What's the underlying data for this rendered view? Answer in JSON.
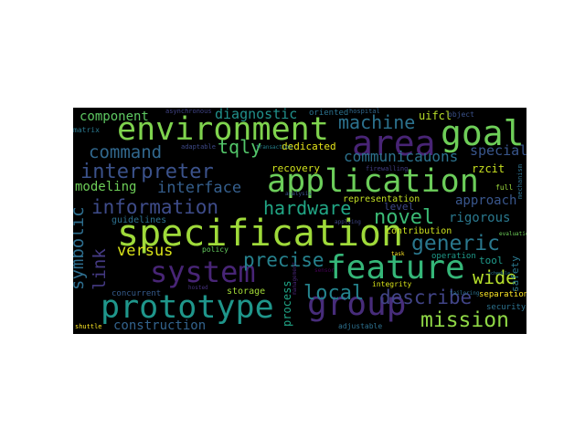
{
  "wordcloud": {
    "background": "#000000",
    "words": [
      {
        "text": "environment",
        "color": "#7fd34e"
      },
      {
        "text": "area",
        "color": "#482475"
      },
      {
        "text": "goal",
        "color": "#6ece58"
      },
      {
        "text": "application",
        "color": "#6ccd5a"
      },
      {
        "text": "specification",
        "color": "#9fda3a"
      },
      {
        "text": "system",
        "color": "#482576"
      },
      {
        "text": "feature",
        "color": "#35b779"
      },
      {
        "text": "prototype",
        "color": "#1f968b"
      },
      {
        "text": "group",
        "color": "#472c7a"
      },
      {
        "text": "interpreter",
        "color": "#3b528b"
      },
      {
        "text": "information",
        "color": "#3e4c8a"
      },
      {
        "text": "machine",
        "color": "#2c728e"
      },
      {
        "text": "command",
        "color": "#31688e"
      },
      {
        "text": "hardware",
        "color": "#21a685"
      },
      {
        "text": "novel",
        "color": "#3bbb75"
      },
      {
        "text": "generic",
        "color": "#2a788e"
      },
      {
        "text": "mission",
        "color": "#8ed645"
      },
      {
        "text": "local",
        "color": "#25848e"
      },
      {
        "text": "describe",
        "color": "#414487"
      },
      {
        "text": "precise",
        "color": "#26828e"
      },
      {
        "text": "symbolic",
        "color": "#2e6e8e"
      },
      {
        "text": "link",
        "color": "#443a83"
      },
      {
        "text": "interface",
        "color": "#355f8d"
      },
      {
        "text": "communicauons",
        "color": "#2c728e"
      },
      {
        "text": "tqly",
        "color": "#52c569"
      },
      {
        "text": "versus",
        "color": "#d8e219"
      },
      {
        "text": "diagnostic",
        "color": "#21918c"
      },
      {
        "text": "component",
        "color": "#5ec962"
      },
      {
        "text": "construction",
        "color": "#33638d"
      },
      {
        "text": "modeling",
        "color": "#6ece58"
      },
      {
        "text": "approach",
        "color": "#39568c"
      },
      {
        "text": "rigorous",
        "color": "#2a788e"
      },
      {
        "text": "special",
        "color": "#39568c"
      },
      {
        "text": "wide",
        "color": "#b5de2b"
      },
      {
        "text": "uifcl",
        "color": "#b8de29"
      },
      {
        "text": "rzcit",
        "color": "#c8e020"
      },
      {
        "text": "recovery",
        "color": "#d0e11c"
      },
      {
        "text": "dedicated",
        "color": "#e5e419"
      },
      {
        "text": "representation",
        "color": "#c2df23"
      },
      {
        "text": "guidelines",
        "color": "#2d708e"
      },
      {
        "text": "contribution",
        "color": "#cde11d"
      },
      {
        "text": "storage",
        "color": "#a2da37"
      },
      {
        "text": "process",
        "color": "#20a486"
      },
      {
        "text": "level",
        "color": "#3e4989"
      },
      {
        "text": "tool",
        "color": "#1f9a8a"
      },
      {
        "text": "safety",
        "color": "#2a788e"
      },
      {
        "text": "operation",
        "color": "#1e9b8a"
      },
      {
        "text": "integrity",
        "color": "#d8e219"
      },
      {
        "text": "separation",
        "color": "#fde725"
      },
      {
        "text": "security",
        "color": "#2c728e"
      },
      {
        "text": "concurrent",
        "color": "#365c8d"
      },
      {
        "text": "policy",
        "color": "#65cb5e"
      },
      {
        "text": "adjustable",
        "color": "#2d708e"
      },
      {
        "text": "shuttle",
        "color": "#fde725"
      },
      {
        "text": "full",
        "color": "#9bd93c"
      },
      {
        "text": "oriented",
        "color": "#2c728e"
      },
      {
        "text": "hospital",
        "color": "#31688e"
      },
      {
        "text": "object",
        "color": "#3b528b"
      },
      {
        "text": "matrix",
        "color": "#2a788e"
      },
      {
        "text": "adaptable",
        "color": "#3e4a89"
      },
      {
        "text": "asynchronous",
        "color": "#414487"
      },
      {
        "text": "transaction",
        "color": "#26828e"
      },
      {
        "text": "firewalling",
        "color": "#433e85"
      },
      {
        "text": "mechanism",
        "color": "#2d708e"
      },
      {
        "text": "applying",
        "color": "#3f4788"
      },
      {
        "text": "schedule",
        "color": "#2a788e"
      },
      {
        "text": "tailoring",
        "color": "#2c728e"
      },
      {
        "text": "hosted",
        "color": "#46327e"
      },
      {
        "text": "management",
        "color": "#482677"
      },
      {
        "text": "sensor",
        "color": "#440154"
      },
      {
        "text": "analysis",
        "color": "#3b528b"
      },
      {
        "text": "task",
        "color": "#fde725"
      },
      {
        "text": "evaluation",
        "color": "#6ece58"
      }
    ]
  }
}
